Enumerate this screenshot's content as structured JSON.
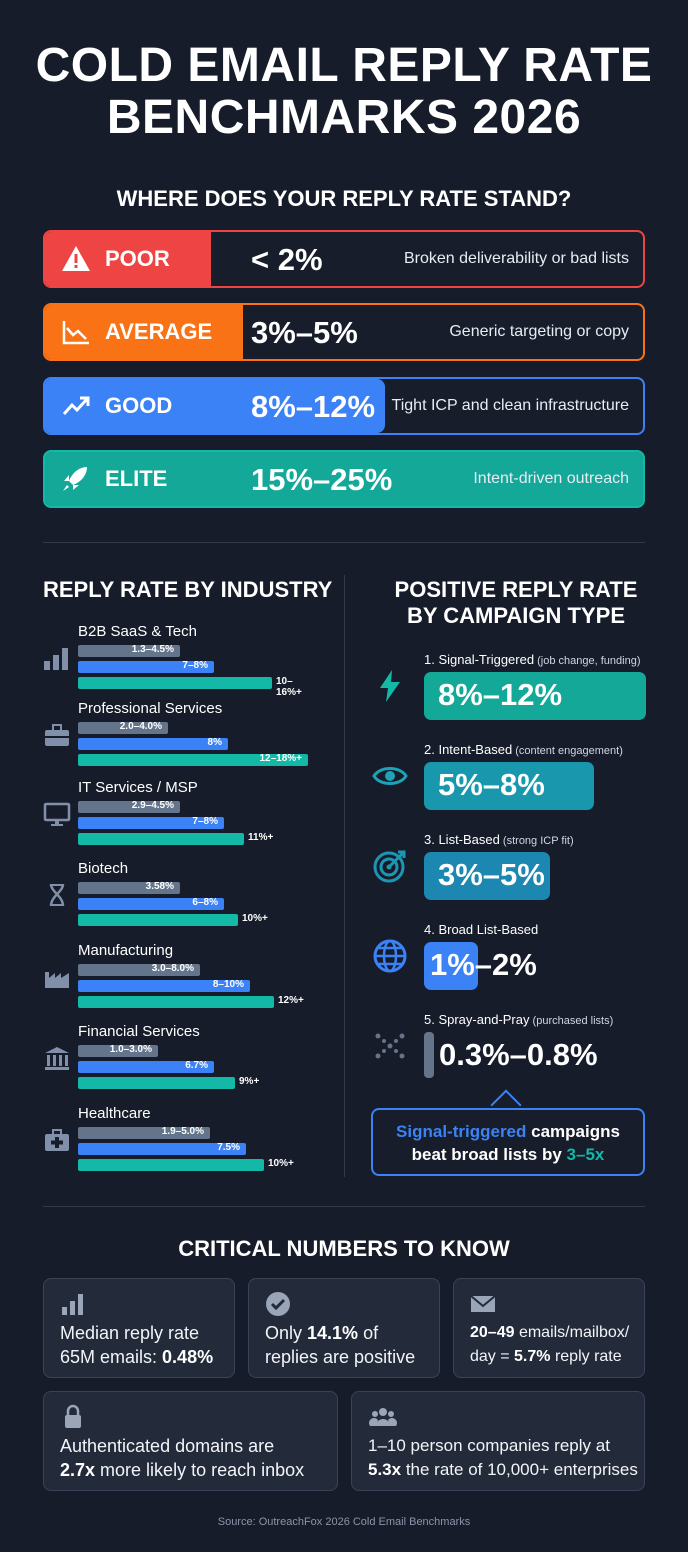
{
  "title_line1": "COLD EMAIL REPLY RATE",
  "title_line2": "BENCHMARKS 2026",
  "subtitle": "WHERE DOES YOUR REPLY RATE STAND?",
  "tiers": [
    {
      "label": "POOR",
      "range": "< 2%",
      "desc": "Broken deliverability or bad lists",
      "color": "#ef4444",
      "icon": "warning-icon"
    },
    {
      "label": "AVERAGE",
      "range": "3%–5%",
      "desc": "Generic targeting or copy",
      "color": "#f97316",
      "icon": "chart-down-icon"
    },
    {
      "label": "GOOD",
      "range": "8%–12%",
      "desc": "Tight ICP and clean infrastructure",
      "color": "#3b82f6",
      "icon": "trend-up-icon"
    },
    {
      "label": "ELITE",
      "range": "15%–25%",
      "desc": "Intent-driven outreach",
      "color": "#14b8a6",
      "icon": "rocket-icon"
    }
  ],
  "industry": {
    "heading": "REPLY RATE BY INDUSTRY",
    "items": [
      {
        "name": "B2B SaaS & Tech",
        "poor": "1.3–4.5%",
        "good": "7–8%",
        "elite": "10–16%+",
        "icon": "bar-chart-icon"
      },
      {
        "name": "Professional Services",
        "poor": "2.0–4.0%",
        "good": "8%",
        "elite": "12–18%+",
        "icon": "briefcase-icon"
      },
      {
        "name": "IT Services / MSP",
        "poor": "2.9–4.5%",
        "good": "7–8%",
        "elite": "11%+",
        "icon": "monitor-icon"
      },
      {
        "name": "Biotech",
        "poor": "3.58%",
        "good": "6–8%",
        "elite": "10%+",
        "icon": "dna-icon"
      },
      {
        "name": "Manufacturing",
        "poor": "3.0–8.0%",
        "good": "8–10%",
        "elite": "12%+",
        "icon": "factory-icon"
      },
      {
        "name": "Financial Services",
        "poor": "1.0–3.0%",
        "good": "6.7%",
        "elite": "9%+",
        "icon": "bank-icon"
      },
      {
        "name": "Healthcare",
        "poor": "1.9–5.0%",
        "good": "7.5%",
        "elite": "10%+",
        "icon": "medical-kit-icon"
      }
    ],
    "colors": {
      "poor": "#64748b",
      "good": "#3b82f6",
      "elite": "#14b8a6"
    }
  },
  "campaign": {
    "heading_line1": "POSITIVE REPLY RATE",
    "heading_line2": "BY CAMPAIGN TYPE",
    "items": [
      {
        "title": "1. Signal-Triggered",
        "note": "(job change, funding)",
        "value": "8%–12%",
        "icon": "lightning-icon"
      },
      {
        "title": "2. Intent-Based",
        "note": "(content engagement)",
        "value": "5%–8%",
        "icon": "eye-icon"
      },
      {
        "title": "3. List-Based",
        "note": "(strong ICP fit)",
        "value": "3%–5%",
        "icon": "target-icon"
      },
      {
        "title": "4. Broad List-Based",
        "note": "",
        "value": "1%–2%",
        "icon": "globe-icon"
      },
      {
        "title": "5. Spray-and-Pray",
        "note": "(purchased lists)",
        "value": "0.3%–0.8%",
        "icon": "scatter-icon"
      }
    ],
    "callout": {
      "highlight": "Signal-triggered",
      "mid": " campaigns",
      "line2": "beat broad lists by ",
      "accent": "3–5x"
    }
  },
  "critical": {
    "heading": "CRITICAL NUMBERS TO KNOW",
    "cards": [
      {
        "pre": "Median reply rate",
        "line2": "65M emails: ",
        "bold": "0.48%",
        "icon": "bar-chart-icon"
      },
      {
        "pre": "Only ",
        "bold": "14.1%",
        "post": " of",
        "line2": "replies are positive",
        "icon": "check-circle-icon"
      },
      {
        "bold1": "20–49",
        "post1": " emails/mailbox/",
        "pre2": "day = ",
        "bold2": "5.7%",
        "post2": " reply rate",
        "icon": "envelope-icon"
      },
      {
        "line1": "Authenticated domains are",
        "bold": "2.7x",
        "post": " more likely to reach inbox",
        "icon": "lock-icon"
      },
      {
        "line1": "1–10 person companies reply at",
        "bold": "5.3x",
        "post": " the rate of 10,000+ enterprises",
        "icon": "people-icon"
      }
    ]
  },
  "source": "Source: OutreachFox 2026 Cold Email Benchmarks"
}
